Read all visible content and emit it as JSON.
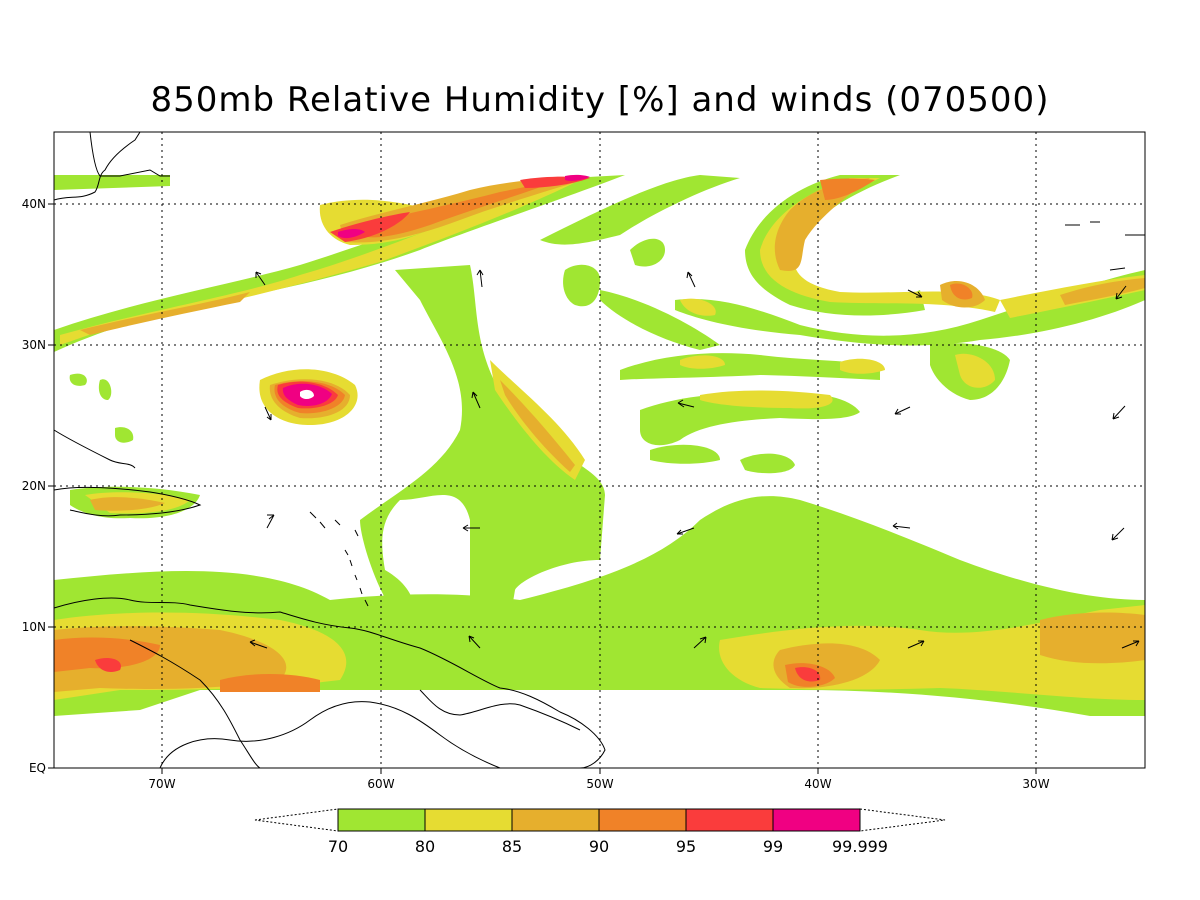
{
  "title": "850mb Relative Humidity [%] and winds (070500)",
  "axes": {
    "y_ticks": [
      "EQ",
      "10N",
      "20N",
      "30N",
      "40N"
    ],
    "x_ticks": [
      "70W",
      "60W",
      "50W",
      "40W",
      "30W"
    ]
  },
  "colorbar": {
    "labels": [
      "70",
      "80",
      "85",
      "90",
      "95",
      "99",
      "99.999"
    ],
    "colors": [
      "#a0e632",
      "#e6dc32",
      "#e6af2d",
      "#f08228",
      "#fa3c3c",
      "#f00082"
    ]
  },
  "colors": {
    "land_outline": "#000000",
    "grid": "#000000",
    "background": "#ffffff"
  }
}
